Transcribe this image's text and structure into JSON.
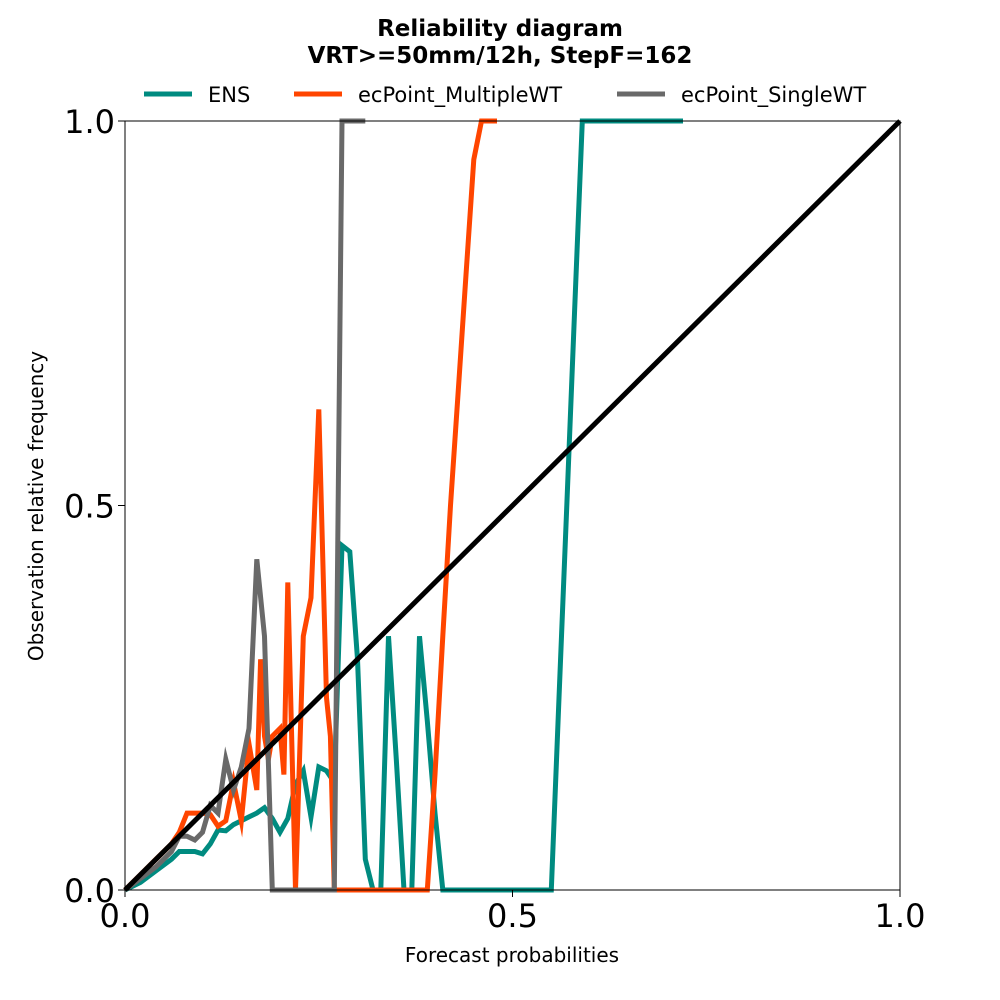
{
  "chart_data": {
    "type": "line",
    "title": "Reliability diagram",
    "subtitle": "VRT>=50mm/12h, StepF=162",
    "xlabel": "Forecast probabilities",
    "ylabel": "Observation relative frequency",
    "xlim": [
      0,
      1
    ],
    "ylim": [
      0,
      1
    ],
    "xticks": [
      "0.0",
      "0.5",
      "1.0"
    ],
    "yticks": [
      "0.0",
      "0.5",
      "1.0"
    ],
    "grid": false,
    "legend_position": "top",
    "series": [
      {
        "name": "ENS",
        "color": "#008b80",
        "x": [
          0.0,
          0.02,
          0.04,
          0.06,
          0.07,
          0.08,
          0.09,
          0.1,
          0.11,
          0.12,
          0.13,
          0.14,
          0.15,
          0.16,
          0.17,
          0.18,
          0.19,
          0.2,
          0.21,
          0.22,
          0.23,
          0.24,
          0.25,
          0.26,
          0.27,
          0.28,
          0.29,
          0.3,
          0.31,
          0.32,
          0.33,
          0.34,
          0.35,
          0.36,
          0.37,
          0.38,
          0.39,
          0.4,
          0.41,
          0.42,
          0.43,
          0.44,
          0.45,
          0.46,
          0.47,
          0.48,
          0.49,
          0.5,
          0.51,
          0.52,
          0.53,
          0.54,
          0.55,
          0.56,
          0.57,
          0.58,
          0.59,
          0.6,
          0.61,
          0.62,
          0.63,
          0.64,
          0.65,
          0.66,
          0.67,
          0.68,
          0.69,
          0.7,
          0.71,
          0.72
        ],
        "y": [
          0.0,
          0.01,
          0.025,
          0.04,
          0.05,
          0.05,
          0.05,
          0.047,
          0.06,
          0.078,
          0.077,
          0.085,
          0.09,
          0.095,
          0.1,
          0.107,
          0.093,
          0.075,
          0.093,
          0.137,
          0.155,
          0.095,
          0.16,
          0.155,
          0.14,
          0.448,
          0.44,
          0.3,
          0.04,
          0.0,
          0.0,
          0.33,
          0.17,
          0.0,
          0.0,
          0.33,
          0.22,
          0.1,
          0.0,
          0.0,
          0.0,
          0.0,
          0.0,
          0.0,
          0.0,
          0.0,
          0.0,
          0.0,
          0.0,
          0.0,
          0.0,
          0.0,
          0.0,
          0.25,
          0.5,
          0.75,
          1.0,
          1.0,
          1.0,
          1.0,
          1.0,
          1.0,
          1.0,
          1.0,
          1.0,
          1.0,
          1.0,
          1.0,
          1.0,
          1.0
        ]
      },
      {
        "name": "ecPoint_MultipleWT",
        "color": "#ff4500",
        "x": [
          0.0,
          0.02,
          0.04,
          0.06,
          0.07,
          0.08,
          0.09,
          0.1,
          0.11,
          0.12,
          0.13,
          0.14,
          0.15,
          0.16,
          0.17,
          0.175,
          0.18,
          0.185,
          0.19,
          0.2,
          0.205,
          0.21,
          0.22,
          0.23,
          0.24,
          0.25,
          0.26,
          0.265,
          0.27,
          0.28,
          0.29,
          0.3,
          0.31,
          0.32,
          0.33,
          0.34,
          0.35,
          0.36,
          0.37,
          0.38,
          0.39,
          0.4,
          0.41,
          0.42,
          0.43,
          0.44,
          0.45,
          0.46,
          0.47,
          0.48
        ],
        "y": [
          0.0,
          0.02,
          0.04,
          0.06,
          0.075,
          0.1,
          0.1,
          0.1,
          0.098,
          0.083,
          0.09,
          0.14,
          0.09,
          0.19,
          0.13,
          0.3,
          0.2,
          0.17,
          0.2,
          0.21,
          0.15,
          0.4,
          0.0,
          0.33,
          0.38,
          0.625,
          0.25,
          0.2,
          0.0,
          0.0,
          0.0,
          0.0,
          0.0,
          0.0,
          0.0,
          0.0,
          0.0,
          0.0,
          0.0,
          0.0,
          0.0,
          0.15,
          0.33,
          0.5,
          0.65,
          0.8,
          0.95,
          1.0,
          1.0,
          1.0
        ]
      },
      {
        "name": "ecPoint_SingleWT",
        "color": "#696969",
        "x": [
          0.0,
          0.02,
          0.04,
          0.06,
          0.07,
          0.08,
          0.09,
          0.1,
          0.11,
          0.12,
          0.13,
          0.14,
          0.15,
          0.16,
          0.17,
          0.18,
          0.19,
          0.2,
          0.205,
          0.21,
          0.22,
          0.23,
          0.24,
          0.25,
          0.26,
          0.27,
          0.28,
          0.29,
          0.3,
          0.31
        ],
        "y": [
          0.0,
          0.015,
          0.03,
          0.05,
          0.07,
          0.07,
          0.065,
          0.075,
          0.11,
          0.1,
          0.17,
          0.13,
          0.16,
          0.21,
          0.43,
          0.33,
          0.0,
          0.0,
          0.0,
          0.0,
          0.0,
          0.0,
          0.0,
          0.0,
          0.0,
          0.0,
          1.0,
          1.0,
          1.0,
          1.0
        ]
      },
      {
        "name": "",
        "color": "#000000",
        "x": [
          0,
          1
        ],
        "y": [
          0,
          1
        ]
      }
    ]
  }
}
